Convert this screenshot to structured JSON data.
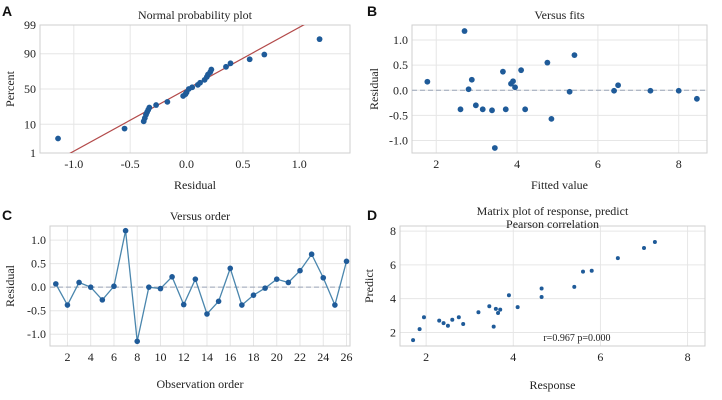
{
  "chart_data": [
    {
      "panel": "A",
      "type": "scatter",
      "title": "Normal probability plot",
      "xlabel": "Residual",
      "ylabel": "Percent",
      "xlim": [
        -1.3,
        1.45
      ],
      "ylim": [
        1,
        99
      ],
      "x_ticks": [
        "-1.0",
        "-0.5",
        "0.0",
        "0.5",
        "1.0"
      ],
      "x_tick_values": [
        -1.0,
        -0.5,
        0.0,
        0.5,
        1.0
      ],
      "y_ticks": [
        "1",
        "10",
        "50",
        "90",
        "99"
      ],
      "y_tick_values": [
        1,
        10,
        50,
        90,
        99
      ],
      "y_scale": "normal-probability",
      "reference_line": {
        "color": "#b34a4a"
      },
      "marker_color": "#1f5b99",
      "points": [
        {
          "x": -1.14,
          "y": 3.6
        },
        {
          "x": -0.55,
          "y": 7.5
        },
        {
          "x": -0.38,
          "y": 12.0
        },
        {
          "x": -0.37,
          "y": 14.5
        },
        {
          "x": -0.36,
          "y": 17.5
        },
        {
          "x": -0.35,
          "y": 20.0
        },
        {
          "x": -0.34,
          "y": 22.5
        },
        {
          "x": -0.33,
          "y": 25.0
        },
        {
          "x": -0.27,
          "y": 28.0
        },
        {
          "x": -0.17,
          "y": 32.0
        },
        {
          "x": -0.03,
          "y": 40.0
        },
        {
          "x": -0.01,
          "y": 42.5
        },
        {
          "x": 0.0,
          "y": 45.0
        },
        {
          "x": 0.02,
          "y": 50.0
        },
        {
          "x": 0.05,
          "y": 52.5
        },
        {
          "x": 0.1,
          "y": 56.0
        },
        {
          "x": 0.12,
          "y": 59.0
        },
        {
          "x": 0.16,
          "y": 63.0
        },
        {
          "x": 0.18,
          "y": 67.0
        },
        {
          "x": 0.19,
          "y": 70.0
        },
        {
          "x": 0.21,
          "y": 73.0
        },
        {
          "x": 0.22,
          "y": 76.0
        },
        {
          "x": 0.35,
          "y": 79.0
        },
        {
          "x": 0.39,
          "y": 82.5
        },
        {
          "x": 0.56,
          "y": 86.0
        },
        {
          "x": 0.69,
          "y": 89.5
        },
        {
          "x": 1.18,
          "y": 96.5
        }
      ]
    },
    {
      "panel": "B",
      "type": "scatter",
      "title": "Versus fits",
      "xlabel": "Fitted value",
      "ylabel": "Residual",
      "xlim": [
        1.4,
        8.7
      ],
      "ylim": [
        -1.25,
        1.3
      ],
      "x_ticks": [
        "2",
        "4",
        "6",
        "8"
      ],
      "x_tick_values": [
        2,
        4,
        6,
        8
      ],
      "y_ticks": [
        "-1.0",
        "-0.5",
        "0.0",
        "0.5",
        "1.0"
      ],
      "y_tick_values": [
        -1.0,
        -0.5,
        0.0,
        0.5,
        1.0
      ],
      "reference_line": {
        "y": 0,
        "color": "#9aa5b8",
        "style": "dashed"
      },
      "marker_color": "#1f5b99",
      "points": [
        {
          "x": 1.78,
          "y": 0.17
        },
        {
          "x": 2.6,
          "y": -0.38
        },
        {
          "x": 2.7,
          "y": 1.18
        },
        {
          "x": 2.8,
          "y": 0.02
        },
        {
          "x": 2.88,
          "y": 0.21
        },
        {
          "x": 2.98,
          "y": -0.3
        },
        {
          "x": 3.15,
          "y": -0.38
        },
        {
          "x": 3.38,
          "y": -0.4
        },
        {
          "x": 3.45,
          "y": -1.15
        },
        {
          "x": 3.65,
          "y": 0.37
        },
        {
          "x": 3.72,
          "y": -0.38
        },
        {
          "x": 3.85,
          "y": 0.13
        },
        {
          "x": 3.9,
          "y": 0.18
        },
        {
          "x": 3.95,
          "y": 0.06
        },
        {
          "x": 4.1,
          "y": 0.4
        },
        {
          "x": 4.2,
          "y": -0.38
        },
        {
          "x": 4.75,
          "y": 0.55
        },
        {
          "x": 4.85,
          "y": -0.57
        },
        {
          "x": 5.3,
          "y": -0.03
        },
        {
          "x": 5.42,
          "y": 0.7
        },
        {
          "x": 6.4,
          "y": -0.01
        },
        {
          "x": 6.5,
          "y": 0.1
        },
        {
          "x": 7.3,
          "y": -0.01
        },
        {
          "x": 8.0,
          "y": -0.01
        },
        {
          "x": 8.45,
          "y": -0.17
        }
      ]
    },
    {
      "panel": "C",
      "type": "line",
      "title": "Versus order",
      "xlabel": "Observation order",
      "ylabel": "Residual",
      "xlim": [
        0.5,
        26.3
      ],
      "ylim": [
        -1.25,
        1.3
      ],
      "x_ticks": [
        "2",
        "4",
        "6",
        "8",
        "10",
        "12",
        "14",
        "16",
        "18",
        "20",
        "22",
        "24",
        "26"
      ],
      "x_tick_values": [
        2,
        4,
        6,
        8,
        10,
        12,
        14,
        16,
        18,
        20,
        22,
        24,
        26
      ],
      "y_ticks": [
        "-1.0",
        "-0.5",
        "0.0",
        "0.5",
        "1.0"
      ],
      "y_tick_values": [
        -1.0,
        -0.5,
        0.0,
        0.5,
        1.0
      ],
      "reference_line": {
        "y": 0,
        "color": "#9aa5b8",
        "style": "dashed"
      },
      "line_color": "#4a86ad",
      "marker_color": "#1f5b99",
      "x": [
        1,
        2,
        3,
        4,
        5,
        6,
        7,
        8,
        9,
        10,
        11,
        12,
        13,
        14,
        15,
        16,
        17,
        18,
        19,
        20,
        21,
        22,
        23,
        24,
        25,
        26
      ],
      "values": [
        0.07,
        -0.38,
        0.1,
        0.0,
        -0.27,
        0.02,
        1.2,
        -1.15,
        0.0,
        -0.03,
        0.22,
        -0.37,
        0.17,
        -0.57,
        -0.3,
        0.4,
        -0.38,
        -0.17,
        -0.02,
        0.17,
        0.1,
        0.35,
        0.7,
        0.2,
        -0.38,
        0.55
      ]
    },
    {
      "panel": "D",
      "type": "scatter",
      "title": "Matrix plot of response, predict",
      "subtitle": "Pearson correlation",
      "xlabel": "Response",
      "ylabel": "Predict",
      "xlim": [
        1.4,
        8.4
      ],
      "ylim": [
        1.2,
        8.3
      ],
      "x_ticks": [
        "2",
        "4",
        "6",
        "8"
      ],
      "x_tick_values": [
        2,
        4,
        6,
        8
      ],
      "y_ticks": [
        "2",
        "4",
        "6",
        "8"
      ],
      "y_tick_values": [
        2,
        4,
        6,
        8
      ],
      "annotation": "r=0.967 p=0.000",
      "marker_color": "#1f5b99",
      "points": [
        {
          "x": 1.7,
          "y": 1.55
        },
        {
          "x": 1.85,
          "y": 2.2
        },
        {
          "x": 1.95,
          "y": 2.9
        },
        {
          "x": 2.3,
          "y": 2.7
        },
        {
          "x": 2.4,
          "y": 2.55
        },
        {
          "x": 2.5,
          "y": 2.4
        },
        {
          "x": 2.6,
          "y": 2.75
        },
        {
          "x": 2.75,
          "y": 2.9
        },
        {
          "x": 2.85,
          "y": 2.5
        },
        {
          "x": 3.2,
          "y": 3.2
        },
        {
          "x": 3.45,
          "y": 3.55
        },
        {
          "x": 3.55,
          "y": 2.35
        },
        {
          "x": 3.6,
          "y": 3.4
        },
        {
          "x": 3.65,
          "y": 3.15
        },
        {
          "x": 3.7,
          "y": 3.35
        },
        {
          "x": 3.9,
          "y": 4.2
        },
        {
          "x": 4.1,
          "y": 3.5
        },
        {
          "x": 4.65,
          "y": 4.6
        },
        {
          "x": 4.65,
          "y": 4.1
        },
        {
          "x": 5.4,
          "y": 4.7
        },
        {
          "x": 5.6,
          "y": 5.6
        },
        {
          "x": 5.8,
          "y": 5.65
        },
        {
          "x": 6.4,
          "y": 6.4
        },
        {
          "x": 7.0,
          "y": 7.0
        },
        {
          "x": 7.25,
          "y": 7.35
        }
      ]
    }
  ]
}
